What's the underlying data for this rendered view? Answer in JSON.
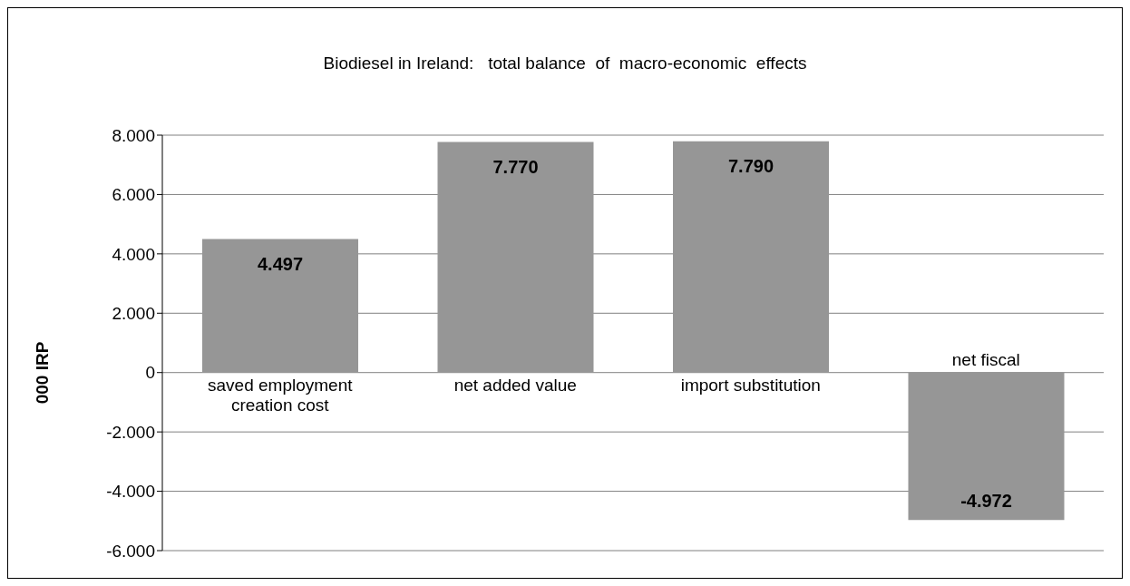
{
  "chart_data": {
    "type": "bar",
    "title": "Biodiesel in Ireland:   total balance  of  macro-economic  effects",
    "ylabel": "000 IRP",
    "categories": [
      "saved employment creation cost",
      "net added value",
      "import substitution",
      "net fiscal"
    ],
    "values": [
      4497,
      7770,
      7790,
      -4972
    ],
    "value_labels": [
      "4.497",
      "7.770",
      "7.790",
      "-4.972"
    ],
    "color": "#969696",
    "ylim": [
      -6000,
      8000
    ],
    "yticks": [
      {
        "value": -6000,
        "label": "-6.000"
      },
      {
        "value": -4000,
        "label": "-4.000"
      },
      {
        "value": -2000,
        "label": "-2.000"
      },
      0,
      {
        "value": 2000,
        "label": "2.000"
      },
      {
        "value": 4000,
        "label": "4.000"
      },
      {
        "value": 6000,
        "label": "6.000"
      },
      {
        "value": 8000,
        "label": "8.000"
      }
    ],
    "grid": "y",
    "legend": false
  }
}
